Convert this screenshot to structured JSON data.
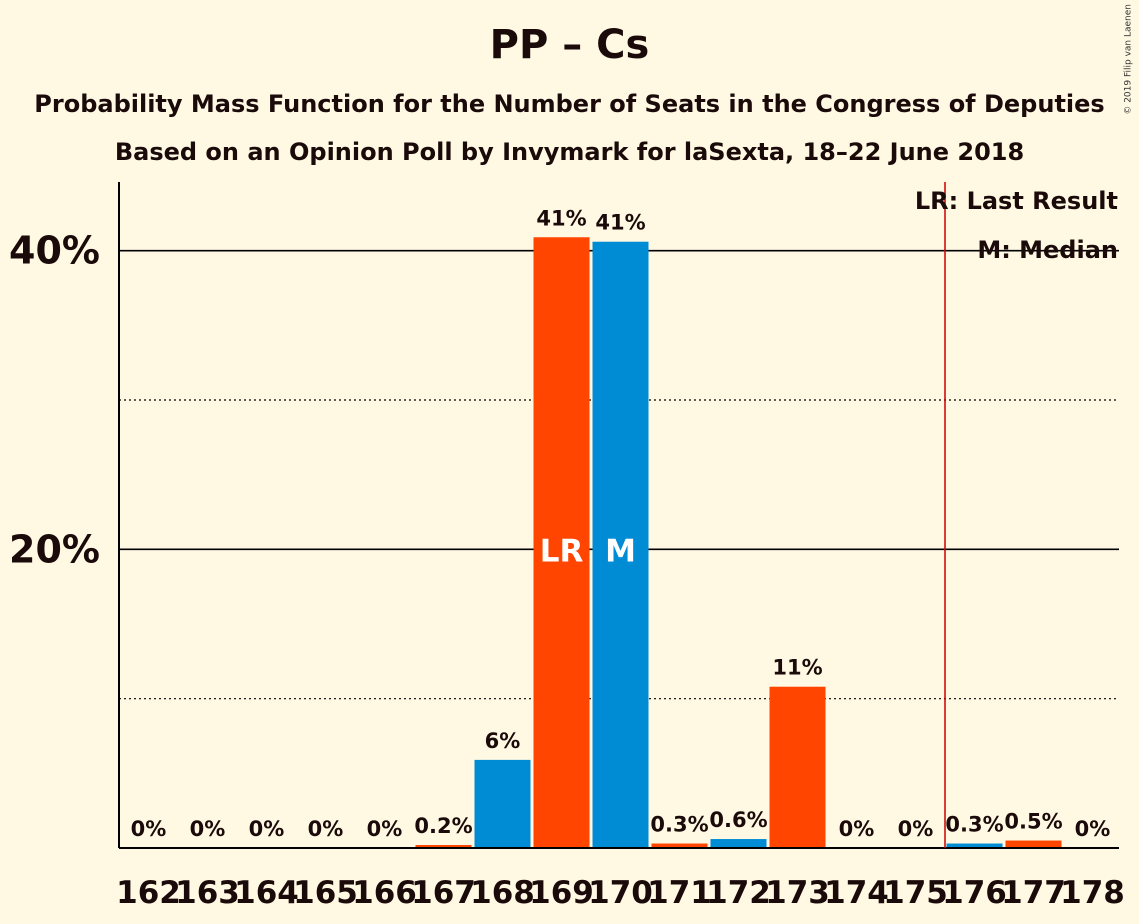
{
  "title": "PP – Cs",
  "subtitle": "Probability Mass Function for the Number of Seats in the Congress of Deputies",
  "subtitle2": "Based on an Opinion Poll by Invymark for laSexta, 18–22 June 2018",
  "copyright": "© 2019 Filip van Laenen",
  "legend": {
    "lr": "LR: Last Result",
    "m": "M: Median"
  },
  "colors": {
    "orange": "#ff4500",
    "blue": "#008bd5",
    "background": "#fff8e2",
    "lastResultLine": "#cc0000"
  },
  "chart_data": {
    "type": "bar",
    "x": [
      162,
      163,
      164,
      165,
      166,
      167,
      168,
      169,
      170,
      171,
      172,
      173,
      174,
      175,
      176,
      177,
      178
    ],
    "values": [
      0,
      0,
      0,
      0,
      0,
      0.2,
      5.9,
      40.9,
      40.6,
      0.3,
      0.6,
      10.8,
      0,
      0,
      0.3,
      0.5,
      0
    ],
    "labels": [
      "0%",
      "0%",
      "0%",
      "0%",
      "0%",
      "0.2%",
      "6%",
      "41%",
      "41%",
      "0.3%",
      "0.6%",
      "11%",
      "0%",
      "0%",
      "0.3%",
      "0.5%",
      "0%"
    ],
    "bar_colors": [
      "orange",
      "blue",
      "orange",
      "blue",
      "orange",
      "orange",
      "blue",
      "orange",
      "blue",
      "orange",
      "blue",
      "orange",
      "blue",
      "orange",
      "blue",
      "orange",
      "blue"
    ],
    "ylim": [
      0,
      44.6
    ],
    "yticks": [
      {
        "value": 20,
        "label": "20%"
      },
      {
        "value": 40,
        "label": "40%"
      }
    ],
    "minor_gridlines": [
      10,
      30
    ],
    "last_result": 169,
    "last_result_marker": "LR",
    "median": 170,
    "median_marker": "M",
    "majority_line": 175.5
  }
}
